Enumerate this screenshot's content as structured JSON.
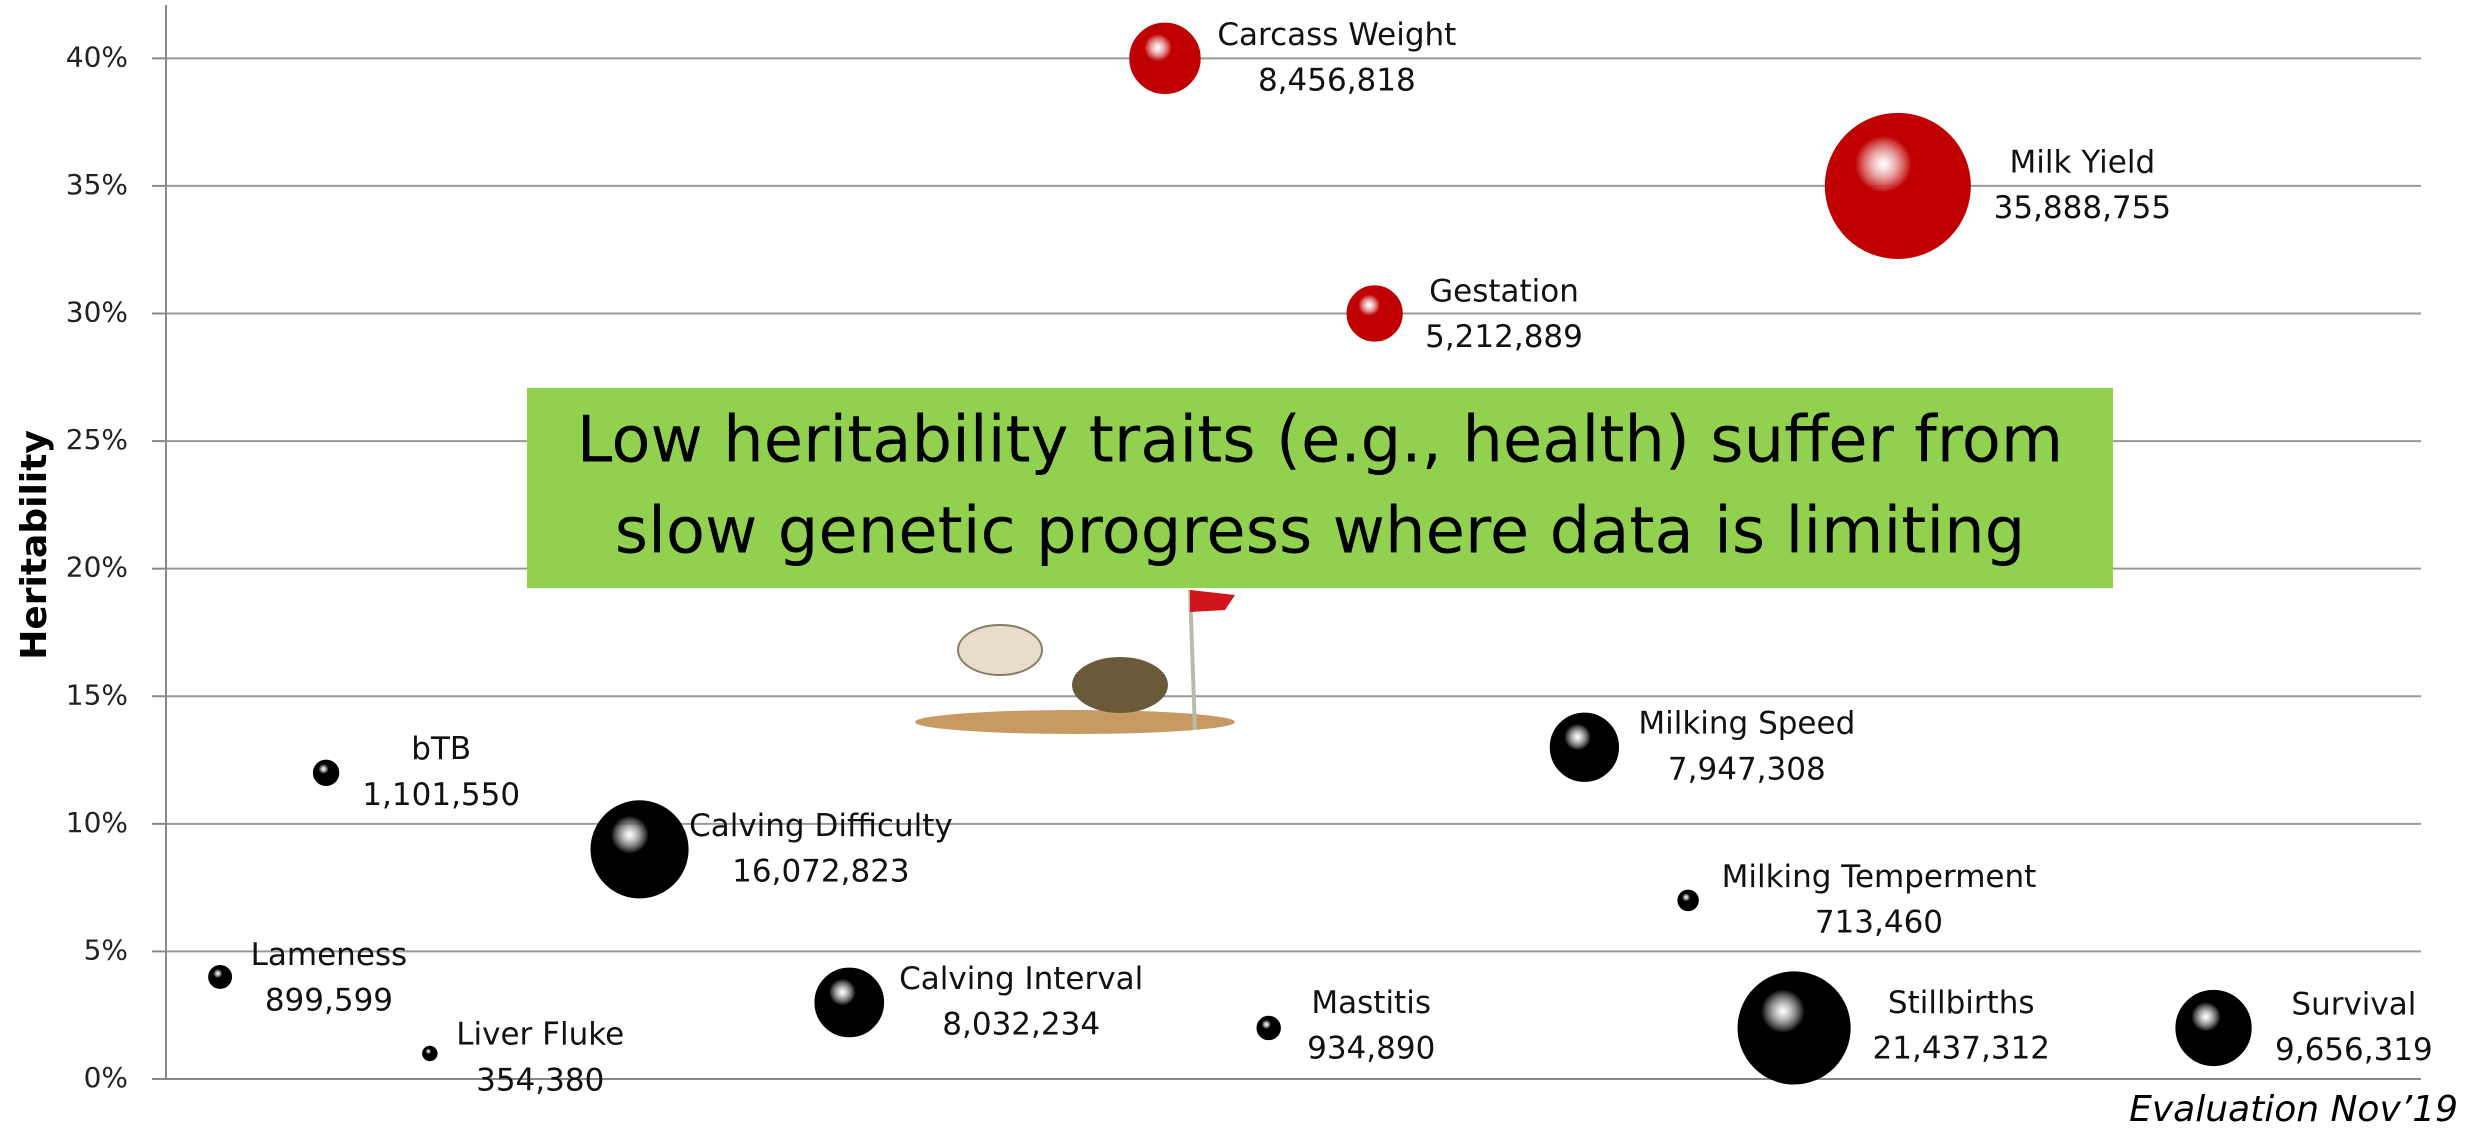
{
  "chart_data": {
    "type": "bubble",
    "y_label": "Heritability",
    "annotation": [
      "Low heritability traits (e.g., health) suffer from",
      "slow genetic progress where data is limiting"
    ],
    "footnote": "Evaluation Nov’19",
    "xlim": [
      0,
      100
    ],
    "ylim": [
      0,
      42
    ],
    "yticks": [
      {
        "value": 0,
        "label": "0%"
      },
      {
        "value": 5,
        "label": "5%"
      },
      {
        "value": 10,
        "label": "10%"
      },
      {
        "value": 15,
        "label": "15%"
      },
      {
        "value": 20,
        "label": "20%"
      },
      {
        "value": 25,
        "label": "25%"
      },
      {
        "value": 30,
        "label": "30%"
      },
      {
        "value": 35,
        "label": "35%"
      },
      {
        "value": 40,
        "label": "40%"
      }
    ],
    "grid": true,
    "points": [
      {
        "label": "Carcass Weight",
        "x": 44.3,
        "y": 40,
        "size": 8456818,
        "size_label": "8,456,818",
        "color": "#c00000"
      },
      {
        "label": "Milk Yield",
        "x": 76.8,
        "y": 35,
        "size": 35888755,
        "size_label": "35,888,755",
        "color": "#c00000"
      },
      {
        "label": "Gestation",
        "x": 53.6,
        "y": 30,
        "size": 5212889,
        "size_label": "5,212,889",
        "color": "#c00000"
      },
      {
        "label": "bTB",
        "x": 7.1,
        "y": 12,
        "size": 1101550,
        "size_label": "1,101,550",
        "color": "#000000"
      },
      {
        "label": "Calving Difficulty",
        "x": 21.0,
        "y": 9,
        "size": 16072823,
        "size_label": "16,072,823",
        "color": "#000000"
      },
      {
        "label": "Lameness",
        "x": 2.4,
        "y": 4,
        "size": 899599,
        "size_label": "899,599",
        "color": "#000000"
      },
      {
        "label": "Liver Fluke",
        "x": 11.7,
        "y": 1,
        "size": 354380,
        "size_label": "354,380",
        "color": "#000000"
      },
      {
        "label": "Calving Interval",
        "x": 30.3,
        "y": 3,
        "size": 8032234,
        "size_label": "8,032,234",
        "color": "#000000"
      },
      {
        "label": "Mastitis",
        "x": 48.9,
        "y": 2,
        "size": 934890,
        "size_label": "934,890",
        "color": "#000000"
      },
      {
        "label": "Milking Speed",
        "x": 62.9,
        "y": 13,
        "size": 7947308,
        "size_label": "7,947,308",
        "color": "#000000"
      },
      {
        "label": "Milking Temperment",
        "x": 67.5,
        "y": 7,
        "size": 713460,
        "size_label": "713,460",
        "color": "#000000"
      },
      {
        "label": "Stillbirths",
        "x": 72.2,
        "y": 2,
        "size": 21437312,
        "size_label": "21,437,312",
        "color": "#000000"
      },
      {
        "label": "Survival",
        "x": 90.8,
        "y": 2,
        "size": 9656319,
        "size_label": "9,656,319",
        "color": "#000000"
      }
    ]
  }
}
